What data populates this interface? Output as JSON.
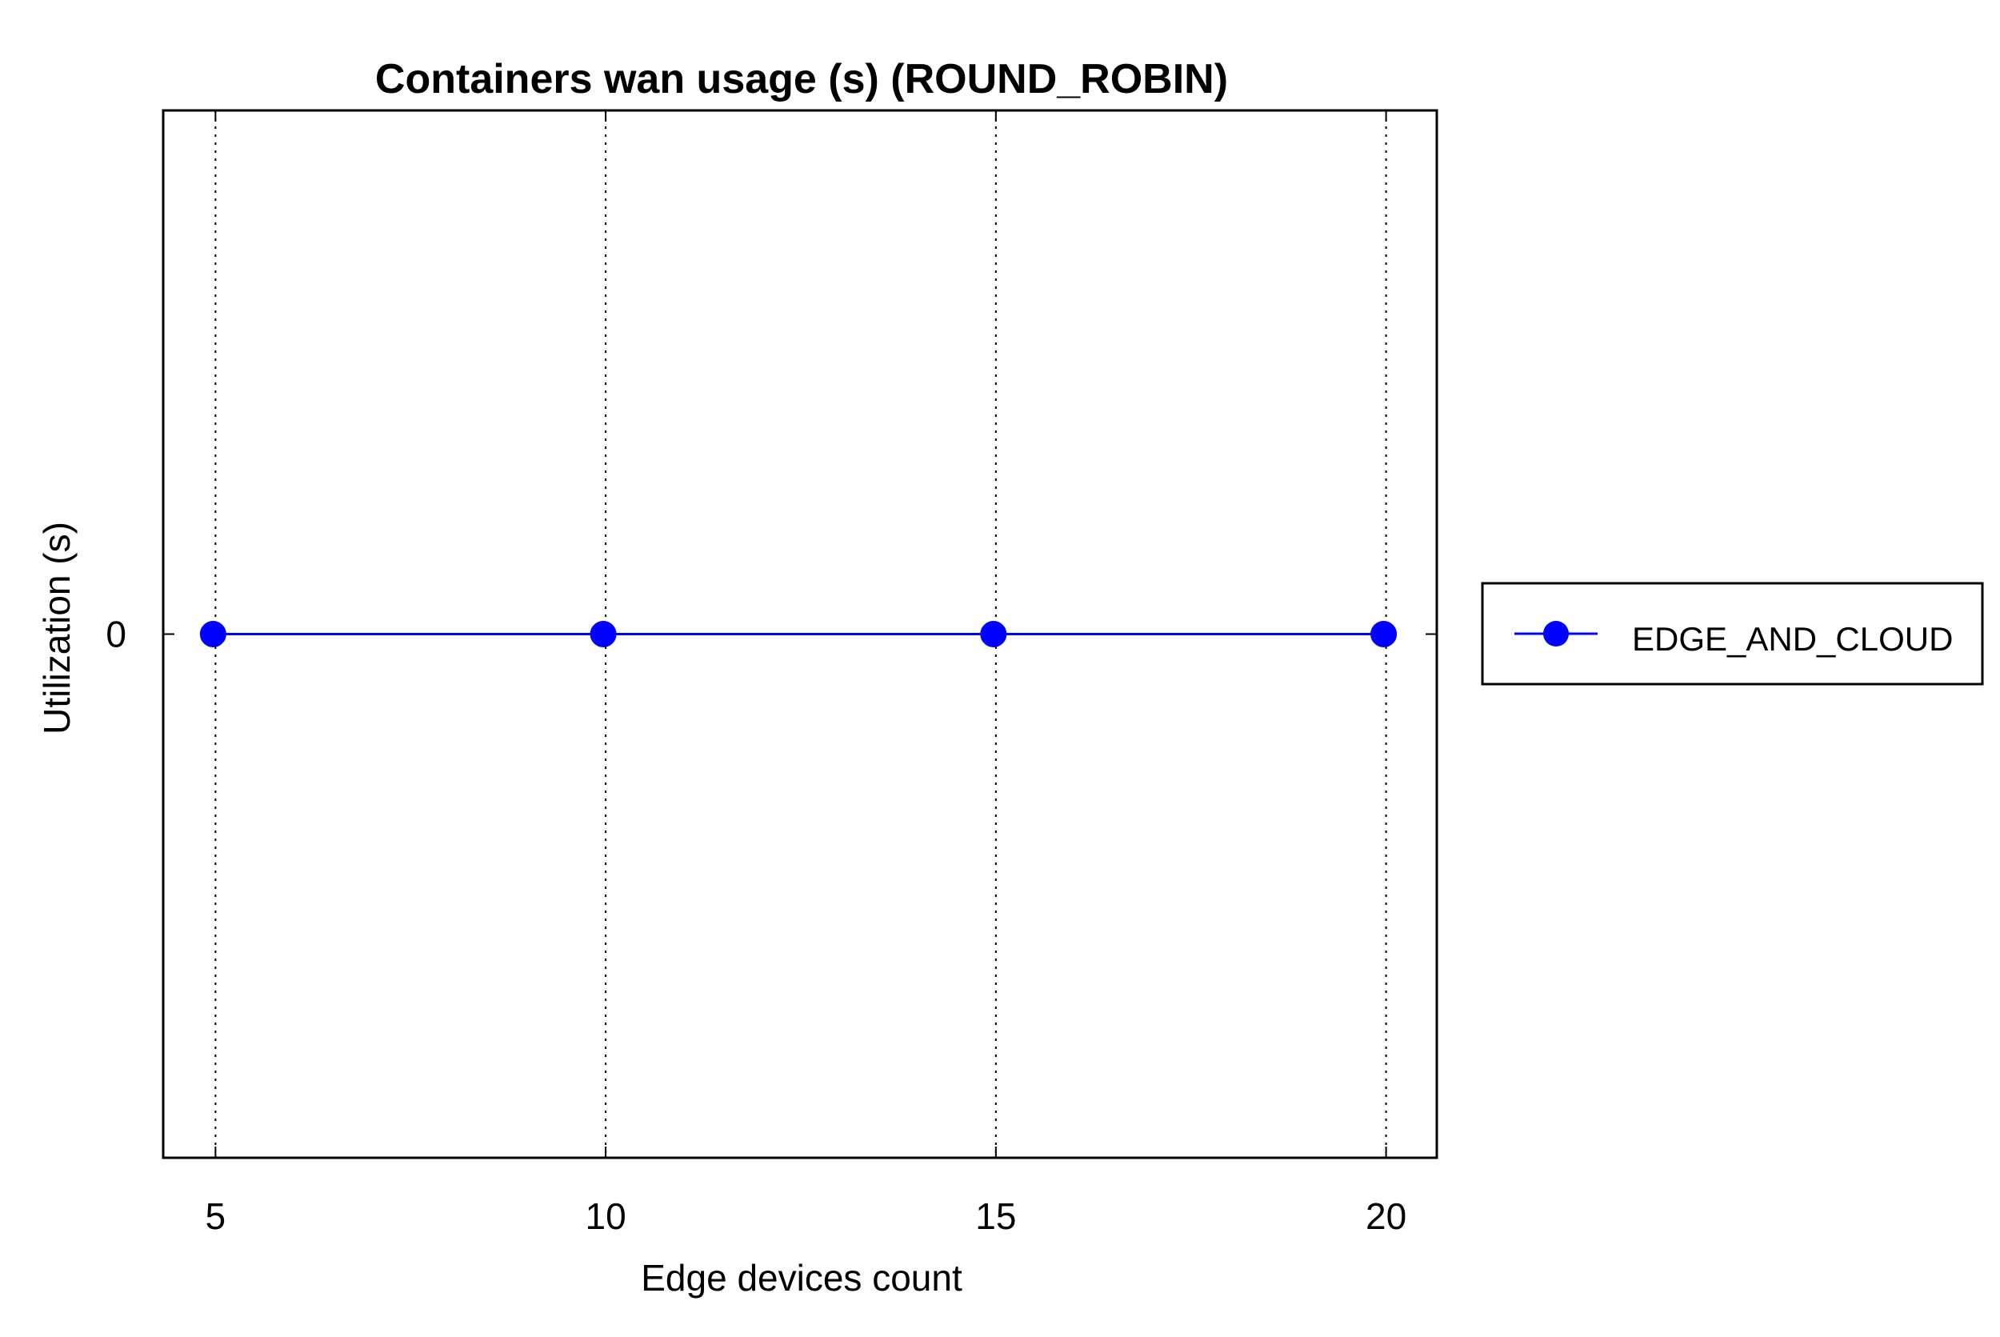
{
  "chart_data": {
    "type": "line",
    "title": "Containers wan usage (s) (ROUND_ROBIN)",
    "xlabel": "Edge devices count",
    "ylabel": "Utilization (s)",
    "x": [
      5,
      10,
      15,
      20
    ],
    "x_ticks": [
      "5",
      "10",
      "15",
      "20"
    ],
    "y_ticks": [
      "0"
    ],
    "xlim": [
      4.33,
      20.65
    ],
    "ylim": [
      -1,
      1
    ],
    "grid": "x-dotted",
    "legend_position": "right",
    "series": [
      {
        "name": "EDGE_AND_CLOUD",
        "values": [
          0,
          0,
          0,
          0
        ],
        "color": "#0000ff",
        "marker": "filled-circle"
      }
    ]
  }
}
